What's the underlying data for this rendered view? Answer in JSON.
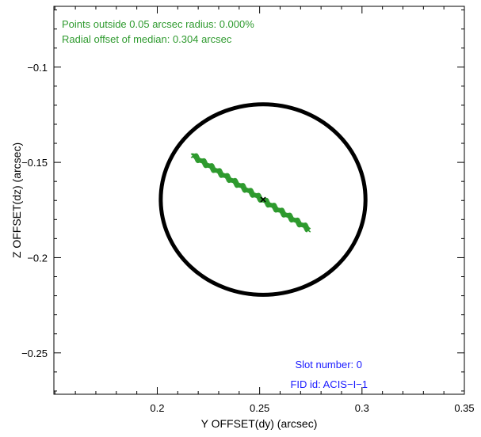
{
  "chart_data": {
    "type": "scatter",
    "xlabel": "Y OFFSET(dy) (arcsec)",
    "ylabel": "Z OFFSET(dz) (arcsec)",
    "xlim": [
      0.1495,
      0.35
    ],
    "ylim": [
      -0.2717,
      -0.0681
    ],
    "x_ticks": [
      0.2,
      0.25,
      0.3,
      0.35
    ],
    "x_tick_labels": [
      "0.2",
      "0.25",
      "0.3",
      "0.35"
    ],
    "y_ticks": [
      -0.1,
      -0.15,
      -0.2,
      -0.25
    ],
    "y_tick_labels": [
      "−0.1",
      "−0.15",
      "−0.2",
      "−0.25"
    ],
    "grid": false,
    "circle": {
      "center": [
        0.2517,
        -0.1695
      ],
      "radius": 0.05,
      "color": "#000000"
    },
    "series": [
      {
        "start": [
          0.2175,
          -0.1465
        ],
        "end": [
          0.274,
          -0.185
        ],
        "color": "#2e9a2e",
        "marker": "x"
      }
    ],
    "median_point": [
      0.2517,
      -0.1695
    ],
    "annotations": [
      {
        "text": "Points outside 0.05 arcsec radius: 0.000%",
        "color": "#2e9a2e",
        "placement": "top-left"
      },
      {
        "text": "Radial offset of median: 0.304 arcsec",
        "color": "#2e9a2e",
        "placement": "top-left"
      },
      {
        "text": "Slot number: 0",
        "color": "#1a1aff",
        "placement": "bottom-right"
      },
      {
        "text": "FID id: ACIS−I−1",
        "color": "#1a1aff",
        "placement": "bottom-right"
      }
    ]
  }
}
